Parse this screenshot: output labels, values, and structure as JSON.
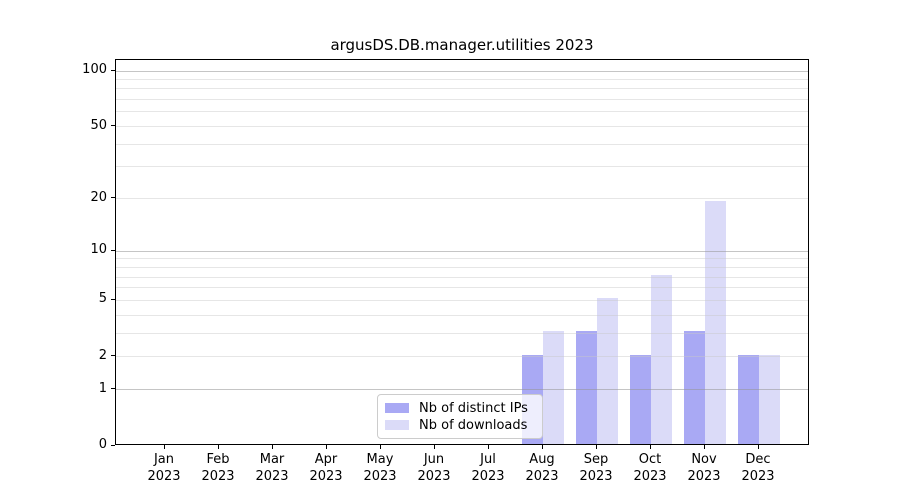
{
  "title": "argusDS.DB.manager.utilities 2023",
  "legend": {
    "items": [
      {
        "label": "Nb of distinct IPs",
        "color": "#a9a9f4"
      },
      {
        "label": "Nb of downloads",
        "color": "#dbdbf8"
      }
    ]
  },
  "x_axis": {
    "months": [
      "Jan",
      "Feb",
      "Mar",
      "Apr",
      "May",
      "Jun",
      "Jul",
      "Aug",
      "Sep",
      "Oct",
      "Nov",
      "Dec"
    ],
    "year": "2023"
  },
  "y_axis": {
    "tick_values": [
      0,
      1,
      2,
      5,
      10,
      20,
      50,
      100
    ]
  },
  "chart_data": {
    "type": "bar",
    "title": "argusDS.DB.manager.utilities 2023",
    "xlabel": "",
    "ylabel": "",
    "y_scale": "log10(1+x)",
    "ylim": [
      0,
      112
    ],
    "yticks": [
      0,
      1,
      2,
      5,
      10,
      20,
      50,
      100
    ],
    "grid": {
      "on": true,
      "drawn_over_bars": true,
      "major_values": [
        1,
        10,
        100
      ],
      "minor_values": [
        2,
        3,
        4,
        5,
        6,
        7,
        8,
        9,
        20,
        30,
        40,
        50,
        60,
        70,
        80,
        90
      ]
    },
    "categories": [
      "Jan 2023",
      "Feb 2023",
      "Mar 2023",
      "Apr 2023",
      "May 2023",
      "Jun 2023",
      "Jul 2023",
      "Aug 2023",
      "Sep 2023",
      "Oct 2023",
      "Nov 2023",
      "Dec 2023"
    ],
    "series": [
      {
        "name": "Nb of distinct IPs",
        "color": "#a9a9f4",
        "values": [
          0,
          0,
          0,
          0,
          0,
          0,
          0,
          2,
          3,
          2,
          3,
          2
        ]
      },
      {
        "name": "Nb of downloads",
        "color": "#dbdbf8",
        "values": [
          0,
          0,
          0,
          0,
          0,
          0,
          0,
          3,
          5,
          7,
          19,
          2
        ]
      }
    ],
    "legend_position": "lower center"
  }
}
